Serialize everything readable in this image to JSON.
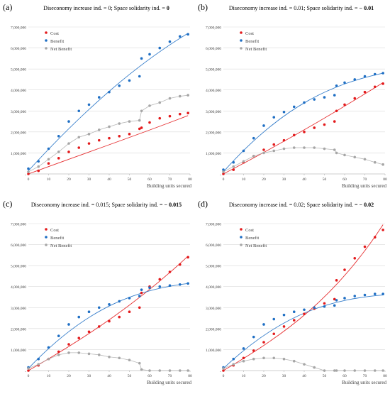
{
  "colors": {
    "cost": "#e31a1c",
    "benefit": "#1f6fc4",
    "net": "#a6a6a6",
    "grid": "#d9d9d9",
    "axis": "#bfbfbf",
    "text": "#404040"
  },
  "chart_data": [
    {
      "type": "scatter",
      "panel_label": "(a)",
      "title_prefix": "Diseconomy increase ind. = 0; Space solidarity ind. = ",
      "title_value": "0",
      "xlabel": "Building units secured",
      "xlim": [
        0,
        80
      ],
      "ylim": [
        0,
        7000000
      ],
      "x_ticks": [
        "0",
        "10",
        "20",
        "30",
        "40",
        "50",
        "60",
        "70",
        "80"
      ],
      "y_ticks": [
        "-",
        "1,000,000",
        "2,000,000",
        "3,000,000",
        "4,000,000",
        "5,000,000",
        "6,000,000",
        "7,000,000"
      ],
      "legend": [
        "Cost",
        "Benefit",
        "Net Benefit"
      ],
      "x": [
        0,
        5,
        10,
        15,
        20,
        25,
        30,
        35,
        40,
        45,
        50,
        55,
        56,
        60,
        65,
        70,
        75,
        79
      ],
      "series": [
        {
          "name": "Cost",
          "values": [
            0,
            150000,
            500000,
            750000,
            1050000,
            1250000,
            1450000,
            1600000,
            1700000,
            1800000,
            1900000,
            2150000,
            2200000,
            2450000,
            2650000,
            2750000,
            2850000,
            2900000
          ],
          "trend": [
            0,
            1060000,
            1880000,
            2780000
          ]
        },
        {
          "name": "Benefit",
          "values": [
            250000,
            600000,
            1200000,
            1800000,
            2500000,
            3000000,
            3300000,
            3650000,
            3900000,
            4200000,
            4450000,
            4650000,
            5500000,
            5700000,
            6000000,
            6300000,
            6550000,
            6650000
          ],
          "trend": [
            150000,
            3300000,
            5300000,
            6700000
          ]
        },
        {
          "name": "Net Benefit",
          "values": [
            100000,
            350000,
            700000,
            1050000,
            1450000,
            1750000,
            1900000,
            2100000,
            2250000,
            2400000,
            2500000,
            2550000,
            3000000,
            3250000,
            3400000,
            3600000,
            3700000,
            3750000
          ]
        }
      ]
    },
    {
      "type": "scatter",
      "panel_label": "(b)",
      "title_prefix": "Diseconomy increase ind. = 0.01; Space solidarity ind. = ",
      "title_value": "− 0.01",
      "xlabel": "Building units secured",
      "xlim": [
        0,
        80
      ],
      "ylim": [
        0,
        7000000
      ],
      "x_ticks": [
        "0",
        "10",
        "20",
        "30",
        "40",
        "50",
        "60",
        "70",
        "80"
      ],
      "y_ticks": [
        "-",
        "1,000,000",
        "2,000,000",
        "3,000,000",
        "4,000,000",
        "5,000,000",
        "6,000,000",
        "7,000,000"
      ],
      "legend": [
        "Cost",
        "Benefit",
        "Net Benefit"
      ],
      "x": [
        0,
        5,
        10,
        15,
        20,
        25,
        30,
        35,
        40,
        45,
        50,
        55,
        56,
        60,
        65,
        70,
        75,
        79
      ],
      "series": [
        {
          "name": "Cost",
          "values": [
            0,
            200000,
            550000,
            850000,
            1150000,
            1400000,
            1600000,
            1850000,
            2000000,
            2200000,
            2350000,
            2500000,
            3000000,
            3300000,
            3600000,
            3900000,
            4150000,
            4300000
          ],
          "trend": [
            0,
            1500000,
            2900000,
            4350000
          ]
        },
        {
          "name": "Benefit",
          "values": [
            200000,
            550000,
            1100000,
            1700000,
            2300000,
            2700000,
            2950000,
            3200000,
            3400000,
            3550000,
            3650000,
            3750000,
            4200000,
            4350000,
            4500000,
            4650000,
            4750000,
            4800000
          ],
          "trend": [
            100000,
            3350000,
            4300000,
            4800000
          ]
        },
        {
          "name": "Net Benefit",
          "values": [
            100000,
            350000,
            600000,
            850000,
            1000000,
            1100000,
            1200000,
            1250000,
            1250000,
            1250000,
            1200000,
            1150000,
            1000000,
            900000,
            800000,
            700000,
            550000,
            450000
          ]
        }
      ]
    },
    {
      "type": "scatter",
      "panel_label": "(c)",
      "title_prefix": "Diseconomy increase ind. = 0.015; Space solidarity ind. = ",
      "title_value": "− 0.015",
      "xlabel": "Building units secured",
      "xlim": [
        0,
        80
      ],
      "ylim": [
        0,
        7000000
      ],
      "x_ticks": [
        "0",
        "10",
        "20",
        "30",
        "40",
        "50",
        "60",
        "70",
        "80"
      ],
      "y_ticks": [
        "-",
        "1,000,000",
        "2,000,000",
        "3,000,000",
        "4,000,000",
        "5,000,000",
        "6,000,000",
        "7,000,000"
      ],
      "legend": [
        "Cost",
        "Benefit",
        "Net Benefit"
      ],
      "x": [
        0,
        5,
        10,
        15,
        20,
        25,
        30,
        35,
        40,
        45,
        50,
        55,
        56,
        60,
        65,
        70,
        75,
        79
      ],
      "series": [
        {
          "name": "Cost",
          "values": [
            0,
            250000,
            550000,
            900000,
            1250000,
            1550000,
            1850000,
            2100000,
            2350000,
            2550000,
            2800000,
            3000000,
            3700000,
            4000000,
            4350000,
            4700000,
            5050000,
            5400000
          ],
          "trend": [
            0,
            1650000,
            3300000,
            5450000
          ]
        },
        {
          "name": "Benefit",
          "values": [
            150000,
            550000,
            1100000,
            1650000,
            2200000,
            2550000,
            2800000,
            3000000,
            3150000,
            3300000,
            3450000,
            3550000,
            3850000,
            3950000,
            4000000,
            4050000,
            4100000,
            4150000
          ],
          "trend": [
            100000,
            3150000,
            3850000,
            4150000
          ]
        },
        {
          "name": "Net Benefit",
          "values": [
            100000,
            300000,
            550000,
            750000,
            850000,
            850000,
            800000,
            750000,
            650000,
            600000,
            500000,
            350000,
            50000,
            0,
            0,
            0,
            0,
            0
          ]
        }
      ]
    },
    {
      "type": "scatter",
      "panel_label": "(d)",
      "title_prefix": "Diseconomy increase ind. = 0.02; Space solidarity ind. = ",
      "title_value": "− 0.02",
      "xlabel": "Building units secured",
      "xlim": [
        0,
        80
      ],
      "ylim": [
        0,
        7000000
      ],
      "x_ticks": [
        "0",
        "10",
        "20",
        "30",
        "40",
        "50",
        "60",
        "70",
        "80"
      ],
      "y_ticks": [
        "-",
        "1,000,000",
        "2,000,000",
        "3,000,000",
        "4,000,000",
        "5,000,000",
        "6,000,000",
        "7,000,000"
      ],
      "legend": [
        "Cost",
        "Benefit",
        "Net Benefit"
      ],
      "x": [
        0,
        5,
        10,
        15,
        20,
        25,
        30,
        35,
        40,
        45,
        50,
        55,
        56,
        60,
        65,
        70,
        75,
        79
      ],
      "series": [
        {
          "name": "Cost",
          "values": [
            0,
            250000,
            600000,
            950000,
            1350000,
            1750000,
            2100000,
            2400000,
            2700000,
            2950000,
            3200000,
            3400000,
            4300000,
            4800000,
            5350000,
            5900000,
            6350000,
            6700000
          ],
          "trend": [
            0,
            1700000,
            3400000,
            6950000
          ]
        },
        {
          "name": "Benefit",
          "values": [
            150000,
            550000,
            1050000,
            1600000,
            2200000,
            2450000,
            2650000,
            2800000,
            2900000,
            3000000,
            3050000,
            3100000,
            3350000,
            3450000,
            3550000,
            3600000,
            3650000,
            3650000
          ],
          "trend": [
            100000,
            2850000,
            3400000,
            3600000
          ]
        },
        {
          "name": "Net Benefit",
          "values": [
            100000,
            300000,
            450000,
            550000,
            600000,
            600000,
            550000,
            450000,
            300000,
            150000,
            0,
            0,
            0,
            0,
            0,
            0,
            0,
            0
          ]
        }
      ]
    }
  ]
}
